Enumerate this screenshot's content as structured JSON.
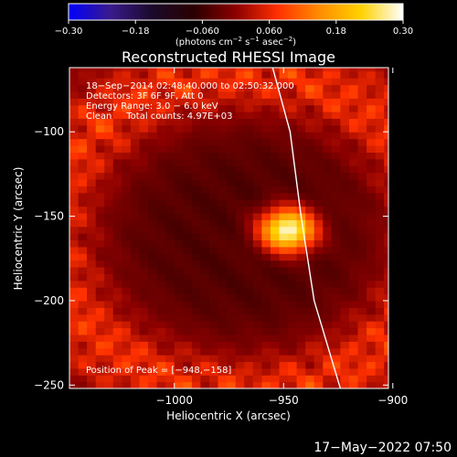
{
  "colorbar": {
    "ticks": [
      "−0.30",
      "−0.18",
      "−0.060",
      "0.060",
      "0.18",
      "0.30"
    ],
    "units_prefix": "(photons cm",
    "units_sup1": "−2",
    "units_mid1": " s",
    "units_sup2": "−1",
    "units_mid2": " asec",
    "units_sup3": "−2",
    "units_suffix": ")",
    "colors": [
      "#0000ff",
      "#3a1a8c",
      "#1a0a2a",
      "#2a0000",
      "#8c0000",
      "#ff3000",
      "#ff8c00",
      "#ffd200",
      "#ffffff"
    ]
  },
  "chart_data": {
    "type": "heatmap",
    "title": "Reconstructed RHESSI Image",
    "xlabel": "Heliocentric X (arcsec)",
    "ylabel": "Heliocentric Y (arcsec)",
    "xlim": [
      -1048,
      -902
    ],
    "ylim": [
      -252,
      -62
    ],
    "xticks": [
      -1000,
      -950,
      -900
    ],
    "xtick_labels": [
      "−1000",
      "−950",
      "−900"
    ],
    "yticks": [
      -100,
      -150,
      -200,
      -250
    ],
    "ytick_labels": [
      "−100",
      "−150",
      "−200",
      "−250"
    ],
    "colorbar_range": [
      -0.3,
      0.3
    ],
    "peak": [
      -948,
      -158
    ],
    "annotations": [
      "18−Sep−2014 02:48:40.000 to 02:50:32.000",
      "Detectors: 3F 6F 9F, Att 0",
      "Energy Range: 3.0 − 6.0 keV",
      "Clean     Total counts: 4.97E+03",
      "Position of Peak = [−948,−158]"
    ],
    "limb": [
      [
        -955,
        -62
      ],
      [
        -947,
        -100
      ],
      [
        -942,
        -150
      ],
      [
        -936,
        -200
      ],
      [
        -924,
        -252
      ]
    ]
  },
  "footer": {
    "timestamp": "17−May−2022 07:50"
  }
}
